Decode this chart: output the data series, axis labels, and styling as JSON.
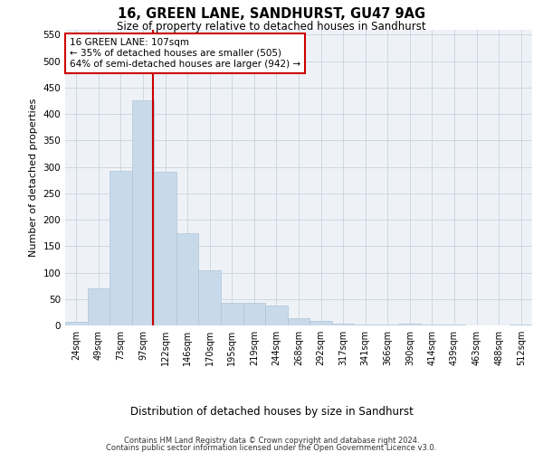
{
  "title1": "16, GREEN LANE, SANDHURST, GU47 9AG",
  "title2": "Size of property relative to detached houses in Sandhurst",
  "xlabel": "Distribution of detached houses by size in Sandhurst",
  "ylabel": "Number of detached properties",
  "categories": [
    "24sqm",
    "49sqm",
    "73sqm",
    "97sqm",
    "122sqm",
    "146sqm",
    "170sqm",
    "195sqm",
    "219sqm",
    "244sqm",
    "268sqm",
    "292sqm",
    "317sqm",
    "341sqm",
    "366sqm",
    "390sqm",
    "414sqm",
    "439sqm",
    "463sqm",
    "488sqm",
    "512sqm"
  ],
  "values": [
    7,
    70,
    293,
    425,
    290,
    175,
    105,
    43,
    42,
    37,
    14,
    8,
    4,
    2,
    1,
    3,
    1,
    1,
    0,
    0,
    2
  ],
  "bar_color": "#c8daea",
  "bar_edgecolor": "#adc4d8",
  "grid_color": "#c8d4e0",
  "red_line_index": 3.45,
  "annotation_line1": "16 GREEN LANE: 107sqm",
  "annotation_line2": "← 35% of detached houses are smaller (505)",
  "annotation_line3": "64% of semi-detached houses are larger (942) →",
  "annotation_box_color": "#ffffff",
  "annotation_box_edgecolor": "#cc0000",
  "ylim": [
    0,
    560
  ],
  "yticks": [
    0,
    50,
    100,
    150,
    200,
    250,
    300,
    350,
    400,
    450,
    500,
    550
  ],
  "footer1": "Contains HM Land Registry data © Crown copyright and database right 2024.",
  "footer2": "Contains public sector information licensed under the Open Government Licence v3.0.",
  "background_color": "#eef2f7",
  "fig_bg": "#ffffff"
}
